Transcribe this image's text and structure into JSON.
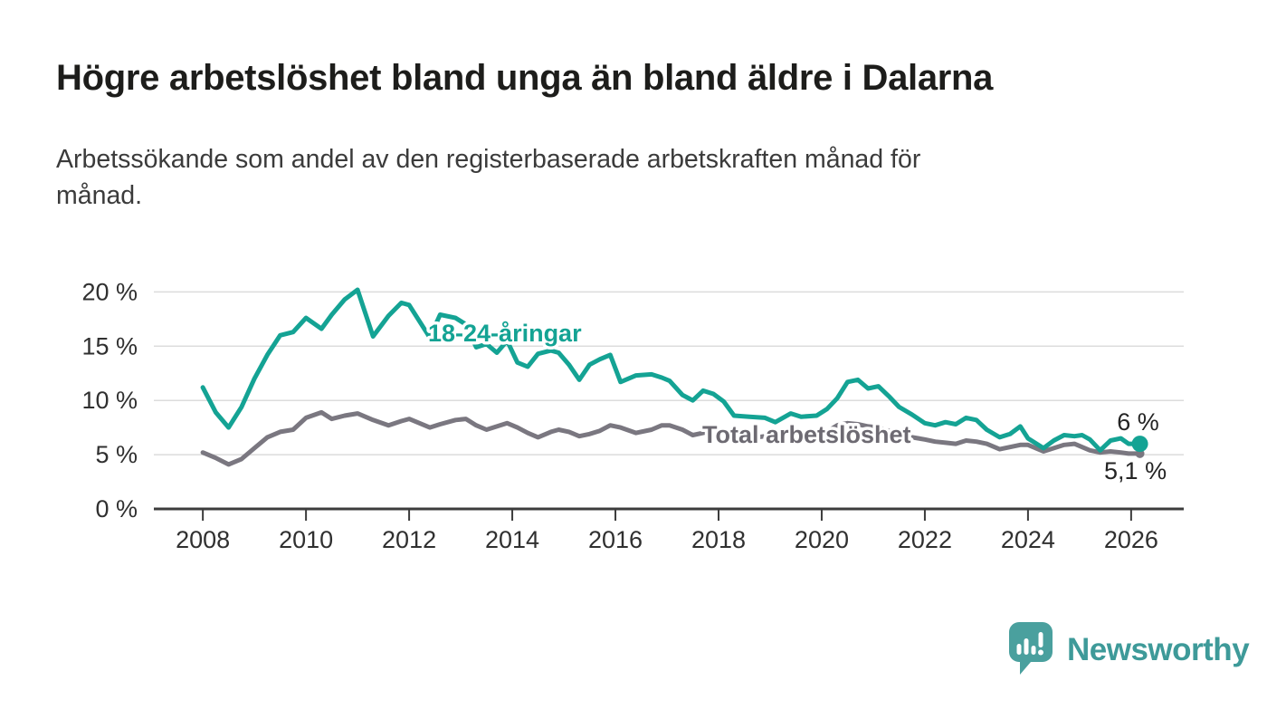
{
  "header": {
    "title": "Högre arbetslöshet bland unga än bland äldre i Dalarna",
    "subtitle_lines": [
      "Arbetssökande som andel av den registerbaserade arbetskraften månad för",
      "månad."
    ]
  },
  "chart_data": {
    "type": "line",
    "title": "Högre arbetslöshet bland unga än bland äldre i Dalarna",
    "subtitle": "Arbetssökande som andel av den registerbaserade arbetskraften månad för månad.",
    "xlabel": "",
    "ylabel": "",
    "grid": "horizontal",
    "xlim": [
      2007.05,
      2027.02
    ],
    "ylim": [
      0,
      21.2
    ],
    "xticks": {
      "values": [
        2008,
        2010,
        2012,
        2014,
        2016,
        2018,
        2020,
        2022,
        2024,
        2026
      ],
      "labels": [
        "2008",
        "2010",
        "2012",
        "2014",
        "2016",
        "2018",
        "2020",
        "2022",
        "2024",
        "2026"
      ]
    },
    "yticks": {
      "values": [
        0,
        5,
        10,
        15,
        20
      ],
      "labels": [
        "0 %",
        "5 %",
        "10 %",
        "15 %",
        "20 %"
      ]
    },
    "x": [
      2008.0,
      2008.25,
      2008.5,
      2008.75,
      2009.0,
      2009.25,
      2009.5,
      2009.75,
      2010.0,
      2010.3,
      2010.5,
      2010.75,
      2011.0,
      2011.3,
      2011.6,
      2011.85,
      2012.0,
      2012.4,
      2012.6,
      2012.9,
      2013.1,
      2013.3,
      2013.5,
      2013.7,
      2013.9,
      2014.1,
      2014.3,
      2014.5,
      2014.75,
      2014.9,
      2015.1,
      2015.3,
      2015.5,
      2015.7,
      2015.9,
      2016.1,
      2016.4,
      2016.7,
      2016.9,
      2017.05,
      2017.3,
      2017.5,
      2017.7,
      2017.9,
      2018.1,
      2018.3,
      2018.6,
      2018.9,
      2019.1,
      2019.4,
      2019.6,
      2019.9,
      2020.1,
      2020.3,
      2020.5,
      2020.7,
      2020.9,
      2021.1,
      2021.3,
      2021.5,
      2021.75,
      2022.0,
      2022.2,
      2022.4,
      2022.6,
      2022.8,
      2023.0,
      2023.2,
      2023.45,
      2023.65,
      2023.85,
      2024.0,
      2024.3,
      2024.5,
      2024.7,
      2024.9,
      2025.05,
      2025.2,
      2025.4,
      2025.6,
      2025.8,
      2025.95,
      2026.17
    ],
    "series": [
      {
        "name": "18-24-åringar",
        "color": "#14a394",
        "label_color": "#14a394",
        "end_label": "6 %",
        "end_value": 6.0,
        "values": [
          11.2,
          8.9,
          7.5,
          9.4,
          12.0,
          14.2,
          16.0,
          16.3,
          17.6,
          16.6,
          17.9,
          19.3,
          20.2,
          15.9,
          17.8,
          19.0,
          18.8,
          15.8,
          17.9,
          17.6,
          17.0,
          14.9,
          15.2,
          14.4,
          15.5,
          13.5,
          13.1,
          14.3,
          14.6,
          14.4,
          13.3,
          11.9,
          13.3,
          13.8,
          14.2,
          11.7,
          12.3,
          12.4,
          12.1,
          11.8,
          10.5,
          10.0,
          10.9,
          10.6,
          9.9,
          8.6,
          8.5,
          8.4,
          8.0,
          8.8,
          8.5,
          8.6,
          9.2,
          10.2,
          11.7,
          11.9,
          11.1,
          11.3,
          10.4,
          9.4,
          8.7,
          7.9,
          7.7,
          8.0,
          7.8,
          8.4,
          8.2,
          7.3,
          6.6,
          6.9,
          7.6,
          6.5,
          5.6,
          6.3,
          6.8,
          6.7,
          6.8,
          6.4,
          5.4,
          6.3,
          6.5,
          6.0,
          6.0
        ]
      },
      {
        "name": "Total arbetslöshet",
        "color": "#7a7780",
        "label_color": "#6d6a72",
        "end_label": "5,1 %",
        "end_value": 5.1,
        "values": [
          5.2,
          4.7,
          4.1,
          4.6,
          5.6,
          6.6,
          7.1,
          7.3,
          8.4,
          8.9,
          8.3,
          8.6,
          8.8,
          8.2,
          7.7,
          8.1,
          8.3,
          7.5,
          7.8,
          8.2,
          8.3,
          7.7,
          7.3,
          7.6,
          7.9,
          7.5,
          7.0,
          6.6,
          7.1,
          7.3,
          7.1,
          6.7,
          6.9,
          7.2,
          7.7,
          7.5,
          7.0,
          7.3,
          7.7,
          7.7,
          7.3,
          6.8,
          7.0,
          7.2,
          7.1,
          6.6,
          6.5,
          6.7,
          6.6,
          6.6,
          6.5,
          6.8,
          7.1,
          7.7,
          7.9,
          7.8,
          7.6,
          7.5,
          7.2,
          6.9,
          6.6,
          6.4,
          6.2,
          6.1,
          6.0,
          6.3,
          6.2,
          6.0,
          5.5,
          5.7,
          5.9,
          5.9,
          5.3,
          5.6,
          5.9,
          6.0,
          5.7,
          5.4,
          5.2,
          5.3,
          5.2,
          5.1,
          5.1
        ]
      }
    ],
    "colors": {
      "grid": "#dcdcdc",
      "axis": "#3c3c3c",
      "tick_text": "#303030",
      "end_label_text": "#242424"
    }
  },
  "footer": {
    "brand": "Newsworthy",
    "logo_icon": "speech-bubble-bar-chart",
    "brand_color": "#3e9a99",
    "logo_bubble_color": "#4aa09e"
  }
}
